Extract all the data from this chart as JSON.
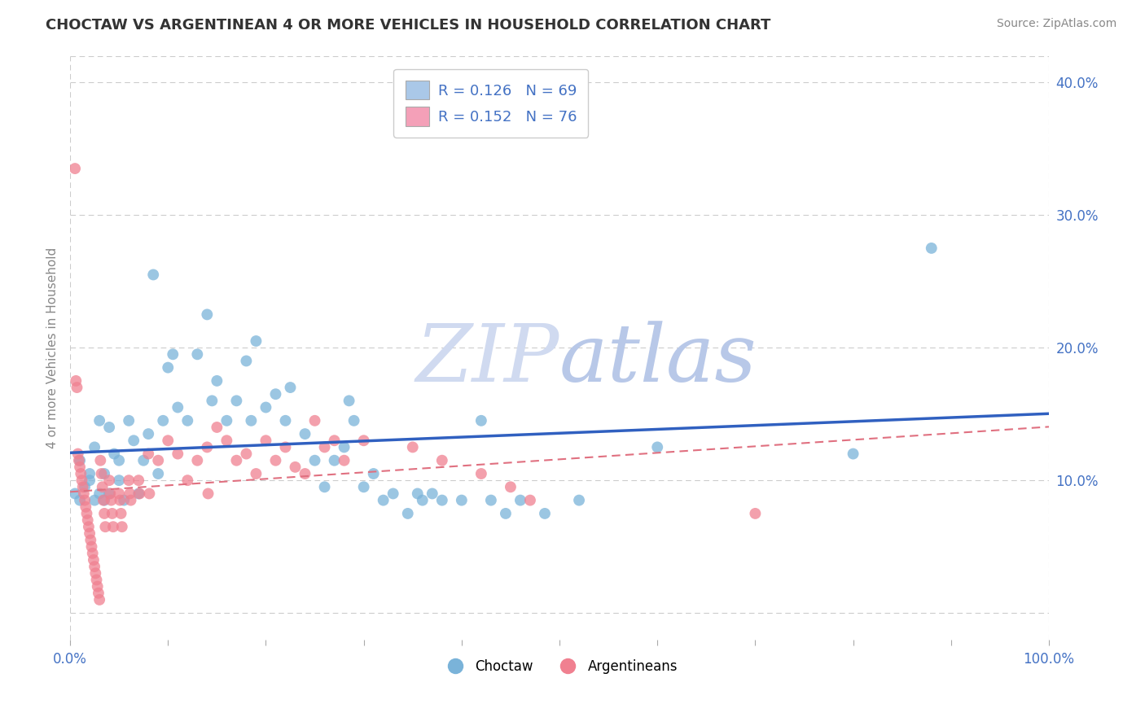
{
  "title": "CHOCTAW VS ARGENTINEAN 4 OR MORE VEHICLES IN HOUSEHOLD CORRELATION CHART",
  "source_text": "Source: ZipAtlas.com",
  "ylabel": "4 or more Vehicles in Household",
  "xlim": [
    0.0,
    1.0
  ],
  "ylim": [
    -0.02,
    0.42
  ],
  "xtick_positions": [
    0.0,
    0.1,
    0.2,
    0.3,
    0.4,
    0.5,
    0.6,
    0.7,
    0.8,
    0.9,
    1.0
  ],
  "xticklabels": [
    "0.0%",
    "",
    "",
    "",
    "",
    "",
    "",
    "",
    "",
    "",
    "100.0%"
  ],
  "ytick_positions": [
    0.0,
    0.1,
    0.2,
    0.3,
    0.4
  ],
  "yticklabels": [
    "",
    "10.0%",
    "20.0%",
    "30.0%",
    "40.0%"
  ],
  "choctaw_color": "#7ab3d9",
  "argentinean_color": "#f08090",
  "choctaw_line_color": "#3060c0",
  "argentinean_line_color": "#e07080",
  "legend_box_choctaw_color": "#aac8e8",
  "legend_box_arg_color": "#f4a0b8",
  "watermark_color": "#d0daf0",
  "choctaw_R": 0.126,
  "choctaw_N": 69,
  "argentinean_R": 0.152,
  "argentinean_N": 76,
  "choctaw_scatter": [
    [
      0.005,
      0.09
    ],
    [
      0.01,
      0.085
    ],
    [
      0.01,
      0.115
    ],
    [
      0.015,
      0.095
    ],
    [
      0.02,
      0.105
    ],
    [
      0.02,
      0.1
    ],
    [
      0.025,
      0.085
    ],
    [
      0.025,
      0.125
    ],
    [
      0.03,
      0.09
    ],
    [
      0.03,
      0.145
    ],
    [
      0.035,
      0.105
    ],
    [
      0.035,
      0.085
    ],
    [
      0.04,
      0.14
    ],
    [
      0.04,
      0.09
    ],
    [
      0.045,
      0.12
    ],
    [
      0.05,
      0.115
    ],
    [
      0.05,
      0.1
    ],
    [
      0.055,
      0.085
    ],
    [
      0.06,
      0.145
    ],
    [
      0.065,
      0.13
    ],
    [
      0.07,
      0.09
    ],
    [
      0.075,
      0.115
    ],
    [
      0.08,
      0.135
    ],
    [
      0.085,
      0.255
    ],
    [
      0.09,
      0.105
    ],
    [
      0.095,
      0.145
    ],
    [
      0.1,
      0.185
    ],
    [
      0.105,
      0.195
    ],
    [
      0.11,
      0.155
    ],
    [
      0.12,
      0.145
    ],
    [
      0.13,
      0.195
    ],
    [
      0.14,
      0.225
    ],
    [
      0.145,
      0.16
    ],
    [
      0.15,
      0.175
    ],
    [
      0.16,
      0.145
    ],
    [
      0.17,
      0.16
    ],
    [
      0.18,
      0.19
    ],
    [
      0.185,
      0.145
    ],
    [
      0.19,
      0.205
    ],
    [
      0.2,
      0.155
    ],
    [
      0.21,
      0.165
    ],
    [
      0.22,
      0.145
    ],
    [
      0.225,
      0.17
    ],
    [
      0.24,
      0.135
    ],
    [
      0.25,
      0.115
    ],
    [
      0.26,
      0.095
    ],
    [
      0.27,
      0.115
    ],
    [
      0.28,
      0.125
    ],
    [
      0.285,
      0.16
    ],
    [
      0.29,
      0.145
    ],
    [
      0.3,
      0.095
    ],
    [
      0.31,
      0.105
    ],
    [
      0.32,
      0.085
    ],
    [
      0.33,
      0.09
    ],
    [
      0.345,
      0.075
    ],
    [
      0.355,
      0.09
    ],
    [
      0.36,
      0.085
    ],
    [
      0.37,
      0.09
    ],
    [
      0.38,
      0.085
    ],
    [
      0.4,
      0.085
    ],
    [
      0.42,
      0.145
    ],
    [
      0.43,
      0.085
    ],
    [
      0.445,
      0.075
    ],
    [
      0.46,
      0.085
    ],
    [
      0.485,
      0.075
    ],
    [
      0.52,
      0.085
    ],
    [
      0.6,
      0.125
    ],
    [
      0.8,
      0.12
    ],
    [
      0.88,
      0.275
    ]
  ],
  "argentinean_scatter": [
    [
      0.005,
      0.335
    ],
    [
      0.006,
      0.175
    ],
    [
      0.007,
      0.17
    ],
    [
      0.008,
      0.12
    ],
    [
      0.009,
      0.115
    ],
    [
      0.01,
      0.11
    ],
    [
      0.011,
      0.105
    ],
    [
      0.012,
      0.1
    ],
    [
      0.013,
      0.095
    ],
    [
      0.014,
      0.09
    ],
    [
      0.015,
      0.085
    ],
    [
      0.016,
      0.08
    ],
    [
      0.017,
      0.075
    ],
    [
      0.018,
      0.07
    ],
    [
      0.019,
      0.065
    ],
    [
      0.02,
      0.06
    ],
    [
      0.021,
      0.055
    ],
    [
      0.022,
      0.05
    ],
    [
      0.023,
      0.045
    ],
    [
      0.024,
      0.04
    ],
    [
      0.025,
      0.035
    ],
    [
      0.026,
      0.03
    ],
    [
      0.027,
      0.025
    ],
    [
      0.028,
      0.02
    ],
    [
      0.029,
      0.015
    ],
    [
      0.03,
      0.01
    ],
    [
      0.031,
      0.115
    ],
    [
      0.032,
      0.105
    ],
    [
      0.033,
      0.095
    ],
    [
      0.034,
      0.085
    ],
    [
      0.035,
      0.075
    ],
    [
      0.036,
      0.065
    ],
    [
      0.04,
      0.1
    ],
    [
      0.041,
      0.09
    ],
    [
      0.042,
      0.085
    ],
    [
      0.043,
      0.075
    ],
    [
      0.044,
      0.065
    ],
    [
      0.05,
      0.09
    ],
    [
      0.051,
      0.085
    ],
    [
      0.052,
      0.075
    ],
    [
      0.053,
      0.065
    ],
    [
      0.06,
      0.1
    ],
    [
      0.061,
      0.09
    ],
    [
      0.062,
      0.085
    ],
    [
      0.07,
      0.1
    ],
    [
      0.071,
      0.09
    ],
    [
      0.08,
      0.12
    ],
    [
      0.081,
      0.09
    ],
    [
      0.09,
      0.115
    ],
    [
      0.1,
      0.13
    ],
    [
      0.11,
      0.12
    ],
    [
      0.12,
      0.1
    ],
    [
      0.13,
      0.115
    ],
    [
      0.14,
      0.125
    ],
    [
      0.141,
      0.09
    ],
    [
      0.15,
      0.14
    ],
    [
      0.16,
      0.13
    ],
    [
      0.17,
      0.115
    ],
    [
      0.18,
      0.12
    ],
    [
      0.19,
      0.105
    ],
    [
      0.2,
      0.13
    ],
    [
      0.21,
      0.115
    ],
    [
      0.22,
      0.125
    ],
    [
      0.23,
      0.11
    ],
    [
      0.24,
      0.105
    ],
    [
      0.25,
      0.145
    ],
    [
      0.26,
      0.125
    ],
    [
      0.27,
      0.13
    ],
    [
      0.28,
      0.115
    ],
    [
      0.3,
      0.13
    ],
    [
      0.35,
      0.125
    ],
    [
      0.38,
      0.115
    ],
    [
      0.42,
      0.105
    ],
    [
      0.45,
      0.095
    ],
    [
      0.47,
      0.085
    ],
    [
      0.7,
      0.075
    ]
  ]
}
